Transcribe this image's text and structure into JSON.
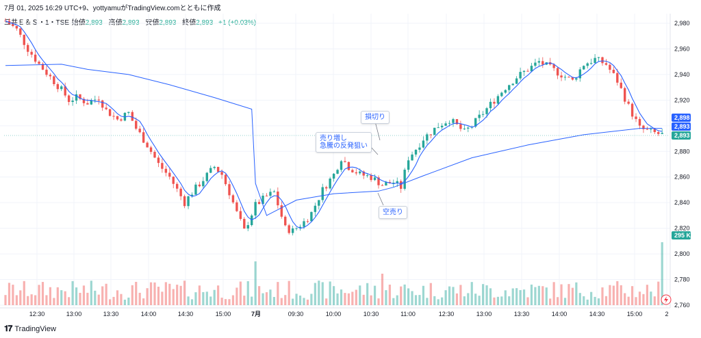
{
  "header": {
    "text": "7月 01, 2025 16:29 UTC+9、yottyamuがTradingView.comとともに作成"
  },
  "legend": {
    "symbol": "三井Ｅ＆Ｓ・1・TSE",
    "open_label": "始値",
    "open": "2,893",
    "high_label": "高値",
    "high": "2,893",
    "low_label": "安値",
    "low": "2,893",
    "close_label": "終値",
    "close": "2,893",
    "change": "+1 (+0.03%)"
  },
  "annotations": {
    "stop_loss": "損切り",
    "short_add_line1": "売り増し",
    "short_add_line2": "急騰の反発狙い",
    "short_sell": "空売り"
  },
  "footer": {
    "brand": "TradingView"
  },
  "colors": {
    "up": "#26a69a",
    "down": "#ef5350",
    "vwap": "#2962ff",
    "ma": "#2962ff",
    "volume_label": "#26a69a"
  },
  "price_labels": {
    "vwap": "2,898",
    "ma": "2,893",
    "last": "2,893",
    "volume": "295 K"
  },
  "chart_data": {
    "type": "candlestick",
    "y_ticks": [
      "2,980",
      "2,960",
      "2,940",
      "2,920",
      "2,900",
      "2,880",
      "2,860",
      "2,840",
      "2,820",
      "2,800",
      "2,780",
      "2,760"
    ],
    "y_values": [
      2980,
      2960,
      2940,
      2920,
      2900,
      2880,
      2860,
      2840,
      2820,
      2800,
      2780,
      2760
    ],
    "x_ticks": [
      "12:30",
      "13:00",
      "13:30",
      "14:00",
      "14:30",
      "15:00",
      "7月",
      "09:30",
      "10:00",
      "10:30",
      "11:00",
      "12:30",
      "13:00",
      "13:30",
      "14:00",
      "14:30",
      "15:00",
      "2"
    ],
    "ylim": [
      2757,
      2985
    ],
    "price_path": [
      [
        0,
        2982
      ],
      [
        3,
        2975
      ],
      [
        6,
        2960
      ],
      [
        9,
        2948
      ],
      [
        12,
        2938
      ],
      [
        15,
        2928
      ],
      [
        17,
        2920
      ],
      [
        19,
        2922
      ],
      [
        22,
        2918
      ],
      [
        25,
        2922
      ],
      [
        27,
        2912
      ],
      [
        30,
        2905
      ],
      [
        33,
        2910
      ],
      [
        35,
        2898
      ],
      [
        38,
        2885
      ],
      [
        41,
        2870
      ],
      [
        44,
        2860
      ],
      [
        46,
        2850
      ],
      [
        48,
        2840
      ],
      [
        50,
        2848
      ],
      [
        53,
        2858
      ],
      [
        56,
        2868
      ],
      [
        58,
        2862
      ],
      [
        60,
        2848
      ],
      [
        62,
        2832
      ],
      [
        64,
        2818
      ],
      [
        67,
        2838
      ],
      [
        70,
        2845
      ],
      [
        72,
        2848
      ],
      [
        75,
        2820
      ],
      [
        77,
        2818
      ],
      [
        80,
        2825
      ],
      [
        82,
        2832
      ],
      [
        85,
        2850
      ],
      [
        88,
        2862
      ],
      [
        90,
        2875
      ],
      [
        92,
        2868
      ],
      [
        95,
        2862
      ],
      [
        98,
        2860
      ],
      [
        101,
        2854
      ],
      [
        104,
        2856
      ],
      [
        106,
        2852
      ],
      [
        108,
        2875
      ],
      [
        110,
        2882
      ],
      [
        112,
        2890
      ],
      [
        114,
        2895
      ],
      [
        116,
        2900
      ],
      [
        119,
        2905
      ],
      [
        121,
        2900
      ],
      [
        123,
        2895
      ],
      [
        125,
        2900
      ],
      [
        128,
        2910
      ],
      [
        131,
        2920
      ],
      [
        134,
        2930
      ],
      [
        137,
        2938
      ],
      [
        140,
        2944
      ],
      [
        143,
        2950
      ],
      [
        146,
        2945
      ],
      [
        149,
        2940
      ],
      [
        152,
        2935
      ],
      [
        155,
        2948
      ],
      [
        158,
        2952
      ],
      [
        161,
        2948
      ],
      [
        164,
        2935
      ],
      [
        167,
        2915
      ],
      [
        170,
        2898
      ],
      [
        173,
        2895
      ],
      [
        176,
        2893
      ]
    ],
    "vwap_path": [
      [
        0,
        2947
      ],
      [
        15,
        2948
      ],
      [
        22,
        2944
      ],
      [
        33,
        2940
      ],
      [
        44,
        2932
      ],
      [
        56,
        2922
      ],
      [
        66,
        2913
      ],
      [
        67,
        2855
      ],
      [
        70,
        2830
      ],
      [
        78,
        2842
      ],
      [
        88,
        2847
      ],
      [
        100,
        2849
      ],
      [
        104,
        2852
      ],
      [
        112,
        2861
      ],
      [
        125,
        2875
      ],
      [
        140,
        2885
      ],
      [
        155,
        2893
      ],
      [
        170,
        2898
      ],
      [
        176,
        2898
      ]
    ],
    "volume_spikes": [
      {
        "bar": 67,
        "kind": "up",
        "value": "high"
      },
      {
        "bar": 101,
        "kind": "up",
        "value": "high"
      },
      {
        "bar": 176,
        "kind": "up",
        "value": "295 K"
      }
    ]
  }
}
